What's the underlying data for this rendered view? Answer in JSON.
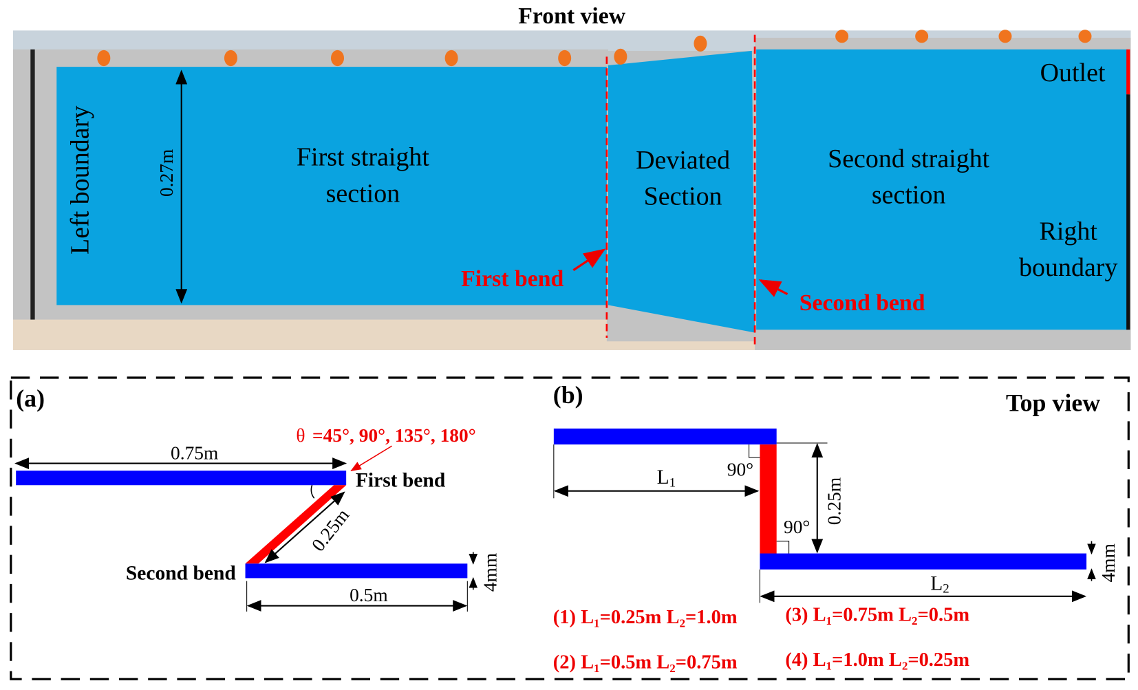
{
  "colors": {
    "water": "#0aa3e0",
    "red": "#ff0000",
    "blue": "#0000ff",
    "frame": "#b9b9b9",
    "accent_text": "#ee1111"
  },
  "front": {
    "title": "Front view",
    "left_boundary": "Left boundary",
    "height": "0.27m",
    "first_straight": [
      "First straight",
      "section"
    ],
    "deviated": [
      "Deviated",
      "Section"
    ],
    "second_straight": [
      "Second straight",
      "section"
    ],
    "outlet": "Outlet",
    "right_boundary": [
      "Right",
      "boundary"
    ],
    "first_bend": "First bend",
    "second_bend": "Second bend"
  },
  "panel_a": {
    "label": "(a)",
    "theta_symbol": "θ",
    "theta": "=45°, 90°, 135°, 180°",
    "len1": "0.75m",
    "first_bend": "First bend",
    "len_dev": "0.25m",
    "second_bend": "Second bend",
    "len2": "0.5m",
    "thickness": "4mm"
  },
  "panel_b": {
    "label": "(b)",
    "title": "Top view",
    "L1": "L",
    "L1_sub": "1",
    "L2": "L",
    "L2_sub": "2",
    "angle1": "90°",
    "angle2": "90°",
    "len_dev": "0.25m",
    "thickness": "4mm",
    "cases": [
      "(1) L₁=0.25m L₂=1.0m",
      "(2) L₁=0.5m  L₂=0.75m",
      "(3) L₁=0.75m L₂=0.5m",
      "(4) L₁=1.0m   L₂=0.25m"
    ]
  }
}
